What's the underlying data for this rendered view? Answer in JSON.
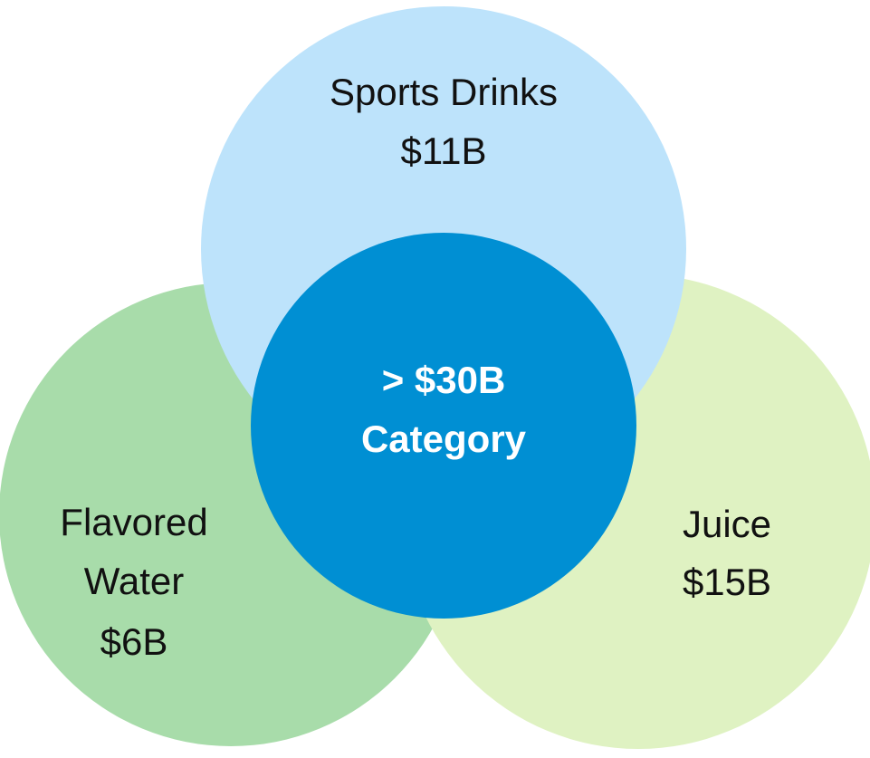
{
  "nodes": [
    {
      "lines": [
        "Flavored",
        "Water",
        "$6B"
      ]
    },
    {
      "lines": [
        "Juice",
        "$15B"
      ]
    },
    {
      "lines": [
        "Sports Drinks",
        "$11B"
      ]
    },
    {
      "lines": [
        "> $30B",
        "Category"
      ]
    }
  ]
}
